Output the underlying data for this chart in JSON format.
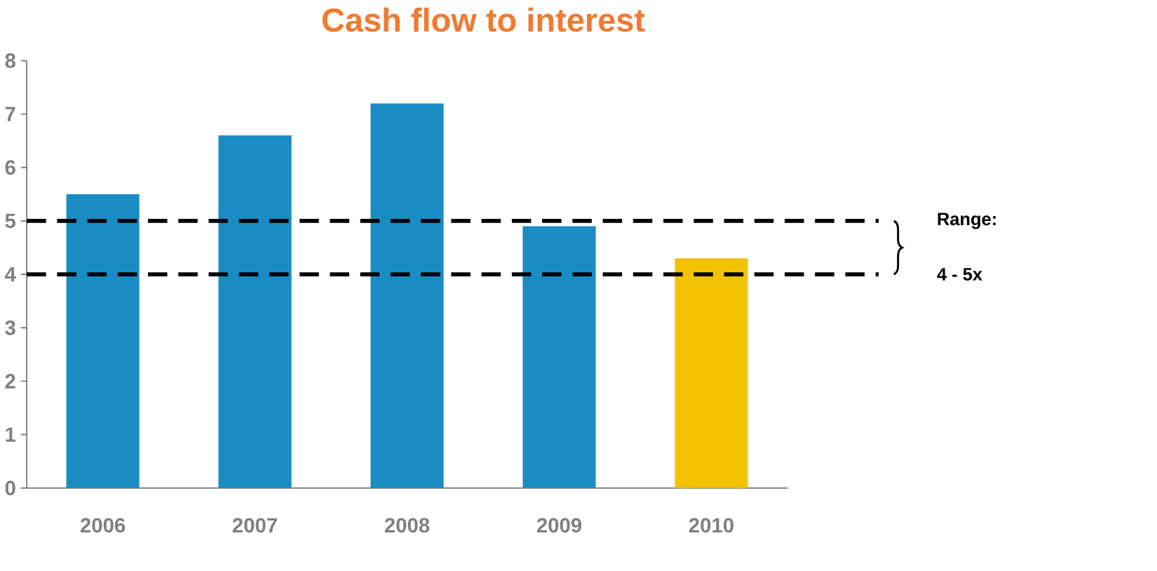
{
  "chart_data": {
    "type": "bar",
    "title": "Cash flow to interest",
    "categories": [
      "2006",
      "2007",
      "2008",
      "2009",
      "2010"
    ],
    "values": [
      5.5,
      6.6,
      7.2,
      4.9,
      4.3
    ],
    "colors": [
      "#1a8cc4",
      "#1a8cc4",
      "#1a8cc4",
      "#1a8cc4",
      "#f2c200"
    ],
    "ylim": [
      0,
      8
    ],
    "yticks": [
      0,
      1,
      2,
      3,
      4,
      5,
      6,
      7,
      8
    ],
    "ref_lines": [
      {
        "axis": "y",
        "value": 5,
        "label": null,
        "color": "#000000",
        "line_style": "dashed"
      },
      {
        "axis": "y",
        "value": 4,
        "label": null,
        "color": "#000000",
        "line_style": "dashed"
      }
    ],
    "annotations": [
      "Range:",
      "4 - 5x"
    ]
  }
}
